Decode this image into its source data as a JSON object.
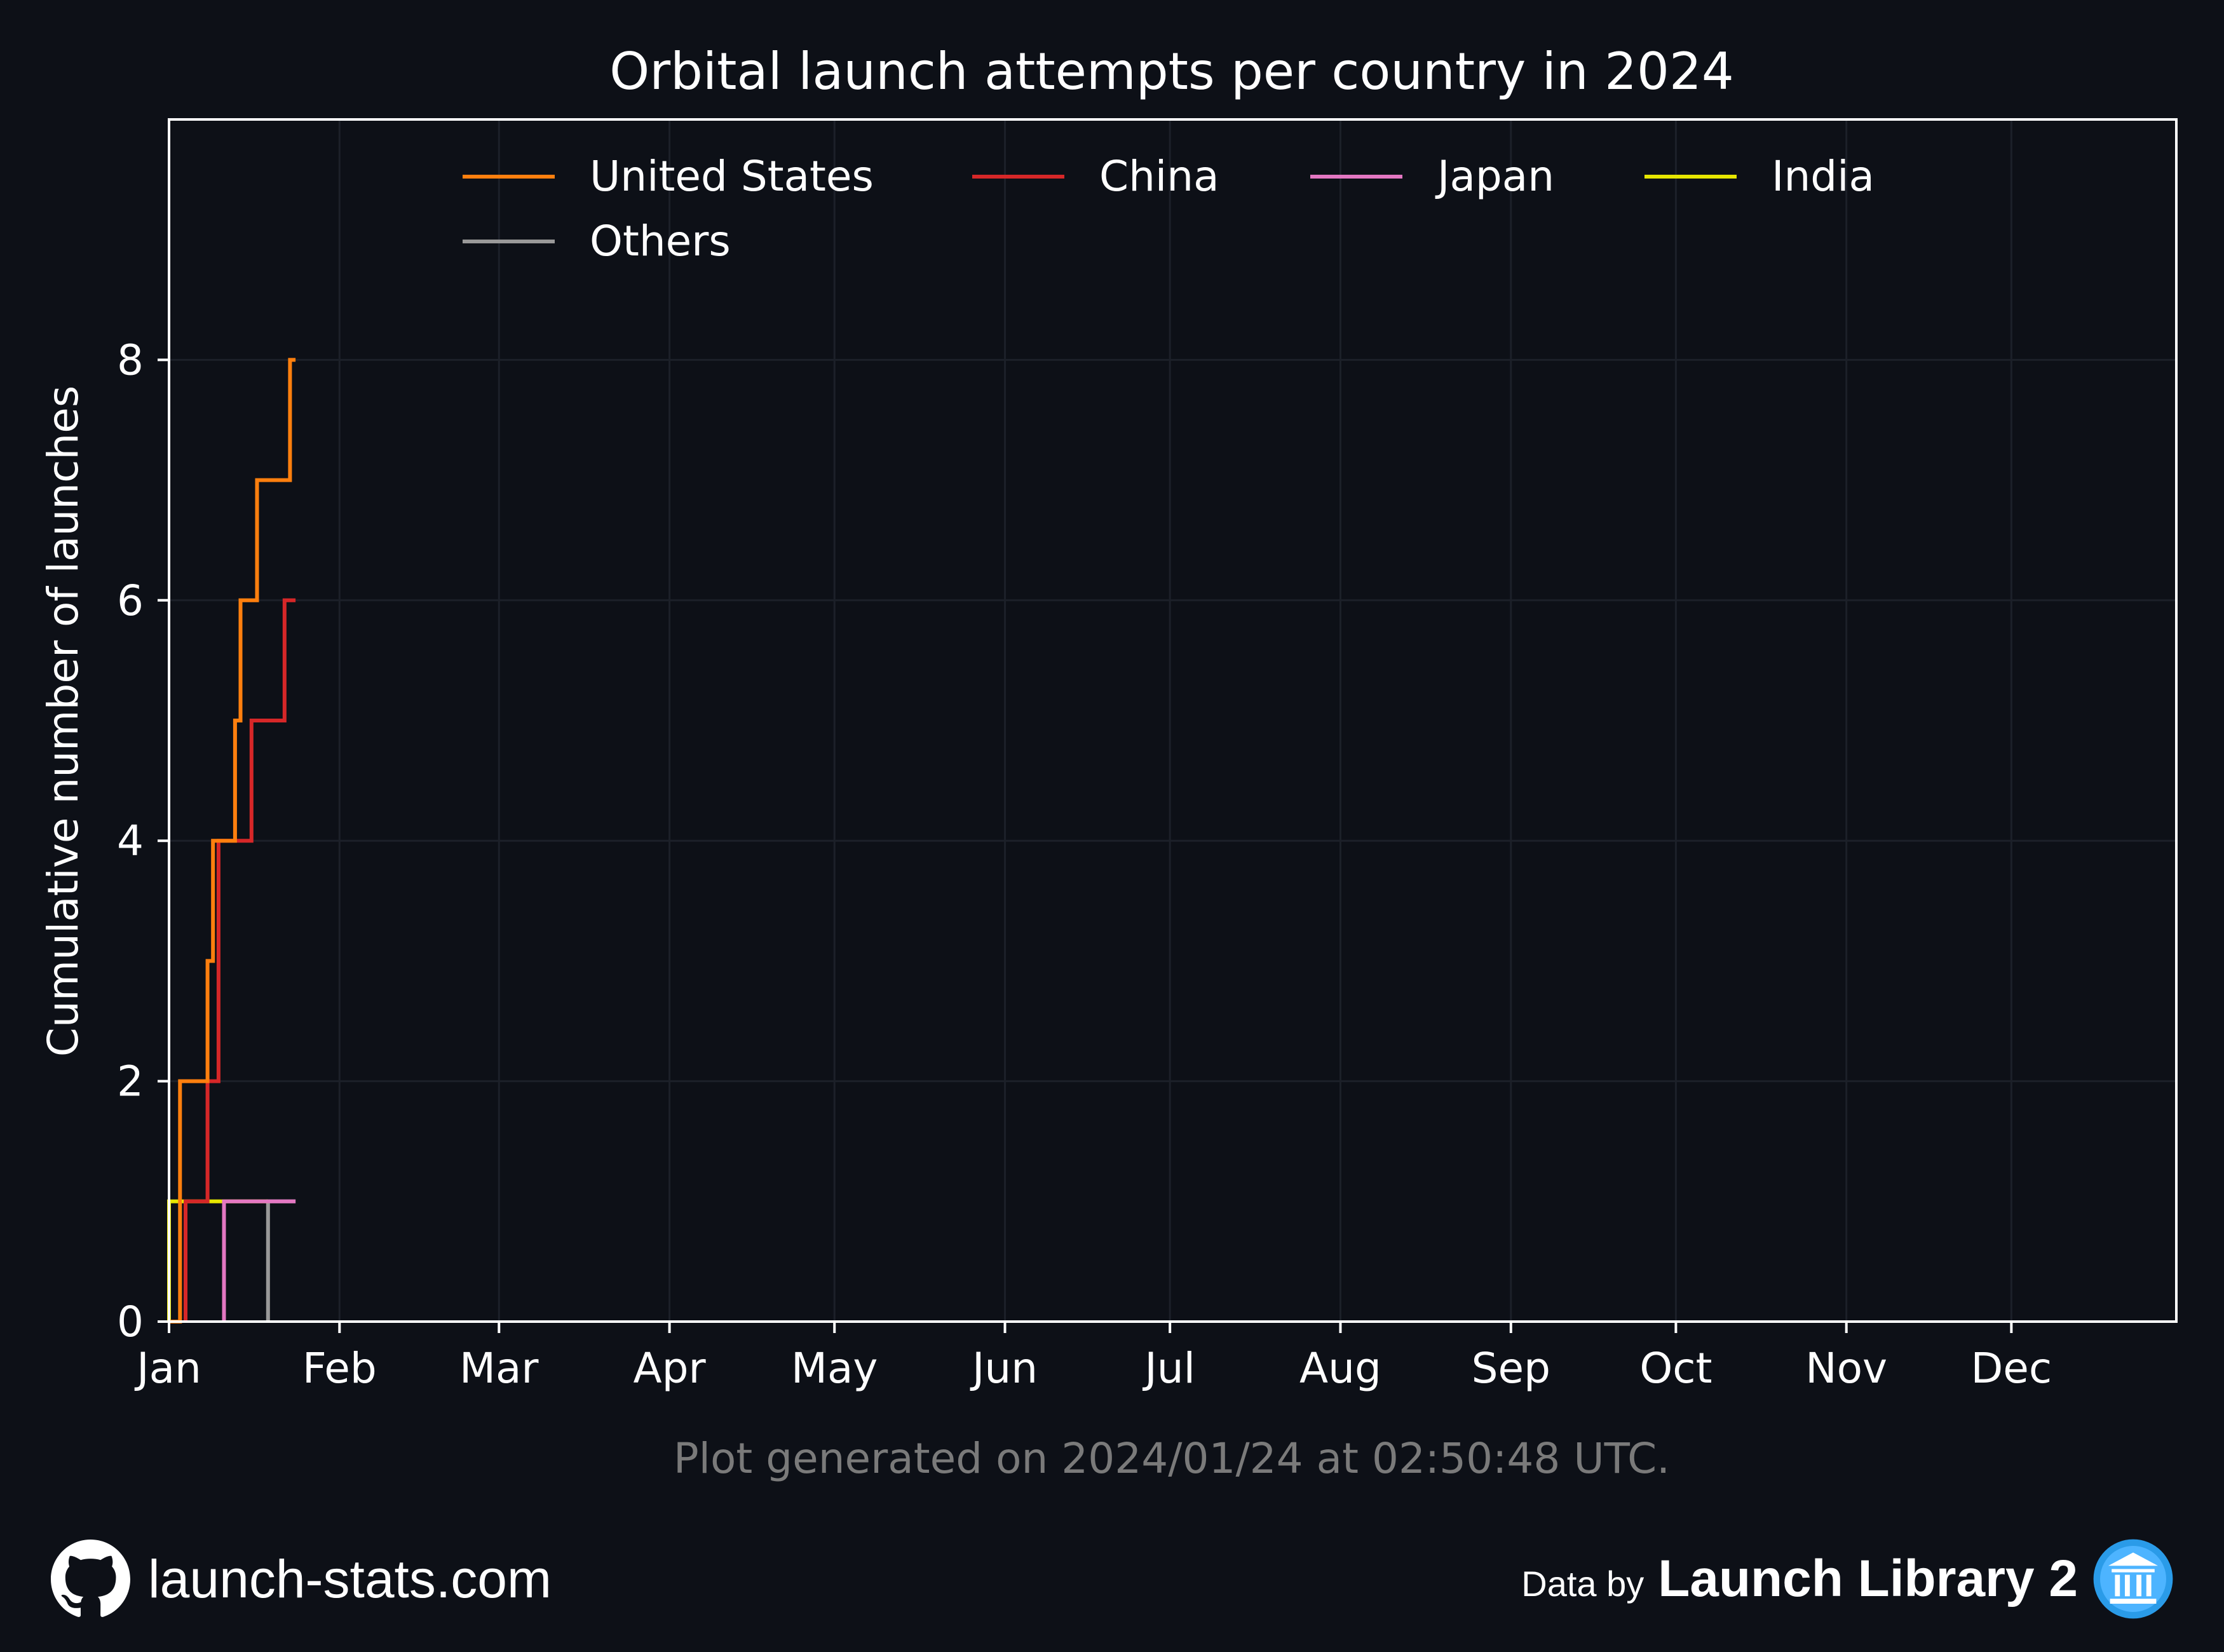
{
  "chart_data": {
    "type": "line",
    "step": true,
    "title": "Orbital launch attempts per country in 2024",
    "xlabel": "",
    "ylabel": "Cumulative number of launches",
    "xlim": [
      "2024-01-01",
      "2024-12-31"
    ],
    "ylim": [
      0,
      10
    ],
    "x_ticks": [
      "Jan",
      "Feb",
      "Mar",
      "Apr",
      "May",
      "Jun",
      "Jul",
      "Aug",
      "Sep",
      "Oct",
      "Nov",
      "Dec"
    ],
    "y_ticks": [
      0,
      2,
      4,
      6,
      8
    ],
    "grid": true,
    "legend_position": "top",
    "series": [
      {
        "name": "United States",
        "color": "#ff7f0e",
        "points": [
          [
            "2024-01-01",
            0
          ],
          [
            "2024-01-03",
            1
          ],
          [
            "2024-01-03",
            2
          ],
          [
            "2024-01-08",
            3
          ],
          [
            "2024-01-09",
            4
          ],
          [
            "2024-01-13",
            4
          ],
          [
            "2024-01-13",
            5
          ],
          [
            "2024-01-14",
            6
          ],
          [
            "2024-01-17",
            7
          ],
          [
            "2024-01-23",
            8
          ],
          [
            "2024-01-24",
            8
          ]
        ]
      },
      {
        "name": "China",
        "color": "#d62728",
        "points": [
          [
            "2024-01-04",
            0
          ],
          [
            "2024-01-04",
            1
          ],
          [
            "2024-01-08",
            1
          ],
          [
            "2024-01-08",
            2
          ],
          [
            "2024-01-10",
            4
          ],
          [
            "2024-01-16",
            4
          ],
          [
            "2024-01-16",
            5
          ],
          [
            "2024-01-22",
            5
          ],
          [
            "2024-01-22",
            6
          ],
          [
            "2024-01-24",
            6
          ]
        ]
      },
      {
        "name": "Japan",
        "color": "#e377c2",
        "points": [
          [
            "2024-01-11",
            0
          ],
          [
            "2024-01-11",
            1
          ],
          [
            "2024-01-24",
            1
          ]
        ]
      },
      {
        "name": "India",
        "color": "#e6e600",
        "points": [
          [
            "2024-01-01",
            0
          ],
          [
            "2024-01-01",
            1
          ],
          [
            "2024-01-19",
            1
          ]
        ]
      },
      {
        "name": "Others",
        "color": "#999999",
        "points": [
          [
            "2024-01-19",
            0
          ],
          [
            "2024-01-19",
            1
          ],
          [
            "2024-01-24",
            1
          ]
        ]
      }
    ],
    "annotation": "Plot generated on 2024/01/24 at 02:50:48 UTC."
  },
  "footer": {
    "site": "launch-stats.com",
    "site_icon": "github-icon",
    "data_by": "Data by",
    "source": "Launch Library 2",
    "source_icon": "launch-library-icon"
  },
  "colors": {
    "background": "#0d1017",
    "axes": "#ffffff",
    "grid": "#1c2029",
    "annotation": "#7a7a7a"
  }
}
